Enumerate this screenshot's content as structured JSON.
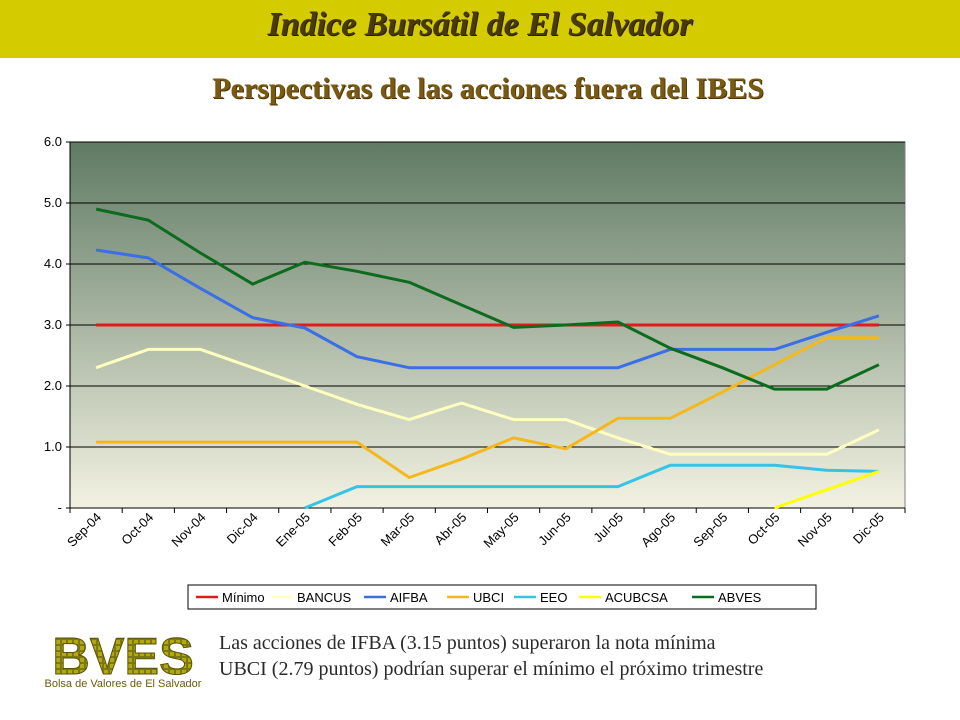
{
  "header": {
    "title": "Indice Bursátil de El Salvador",
    "subtitle": "Perspectivas de las acciones fuera del IBES"
  },
  "notes": [
    "Las acciones de IFBA (3.15 puntos) superaron la nota mínima",
    "UBCI (2.79 puntos) podrían superar el mínimo el próximo trimestre"
  ],
  "logo": {
    "text": "BVES",
    "caption": "Bolsa de Valores de El Salvador"
  },
  "chart_data": {
    "type": "line",
    "title": "",
    "xlabel": "",
    "ylabel": "",
    "categories": [
      "Sep-04",
      "Oct-04",
      "Nov-04",
      "Dic-04",
      "Ene-05",
      "Feb-05",
      "Mar-05",
      "Abr-05",
      "May-05",
      "Jun-05",
      "Jul-05",
      "Ago-05",
      "Sep-05",
      "Oct-05",
      "Nov-05",
      "Dic-05"
    ],
    "ylim": [
      0,
      6
    ],
    "yticks": [
      {
        "value": 0,
        "label": "-"
      },
      {
        "value": 1,
        "label": "1.0"
      },
      {
        "value": 2,
        "label": "2.0"
      },
      {
        "value": 3,
        "label": "3.0"
      },
      {
        "value": 4,
        "label": "4.0"
      },
      {
        "value": 5,
        "label": "5.0"
      },
      {
        "value": 6,
        "label": "6.0"
      }
    ],
    "grid": true,
    "legend_position": "bottom",
    "series": [
      {
        "name": "Mínimo",
        "color": "#e21c1c",
        "values": [
          3.0,
          3.0,
          3.0,
          3.0,
          3.0,
          3.0,
          3.0,
          3.0,
          3.0,
          3.0,
          3.0,
          3.0,
          3.0,
          3.0,
          3.0,
          3.0
        ]
      },
      {
        "name": "BANCUS",
        "color": "#ffffbf",
        "values": [
          2.3,
          2.6,
          2.6,
          2.3,
          2.0,
          1.7,
          1.45,
          1.72,
          1.45,
          1.45,
          1.15,
          0.88,
          0.88,
          0.88,
          0.88,
          1.28
        ]
      },
      {
        "name": "AIFBA",
        "color": "#3a6fe6",
        "values": [
          4.23,
          4.1,
          3.6,
          3.12,
          2.95,
          2.48,
          2.3,
          2.3,
          2.3,
          2.3,
          2.3,
          2.6,
          2.6,
          2.6,
          2.88,
          3.15
        ]
      },
      {
        "name": "UBCI",
        "color": "#f5b81c",
        "values": [
          1.08,
          1.08,
          1.08,
          1.08,
          1.08,
          1.08,
          0.5,
          0.8,
          1.15,
          0.97,
          1.47,
          1.47,
          1.9,
          2.35,
          2.79,
          2.79
        ]
      },
      {
        "name": "EEO",
        "color": "#33c4e8",
        "values": [
          null,
          null,
          null,
          null,
          0,
          0.35,
          0.35,
          0.35,
          0.35,
          0.35,
          0.35,
          0.7,
          0.7,
          0.7,
          0.62,
          0.6
        ]
      },
      {
        "name": "ACUBCSA",
        "color": "#ffff00",
        "values": [
          null,
          null,
          null,
          null,
          null,
          null,
          null,
          null,
          null,
          null,
          null,
          null,
          null,
          0,
          0.3,
          0.6
        ]
      },
      {
        "name": "ABVES",
        "color": "#0d6b1d",
        "values": [
          4.9,
          4.72,
          4.18,
          3.67,
          4.03,
          3.88,
          3.7,
          3.33,
          2.96,
          3.0,
          3.05,
          2.62,
          2.3,
          1.95,
          1.95,
          2.35
        ]
      }
    ]
  }
}
